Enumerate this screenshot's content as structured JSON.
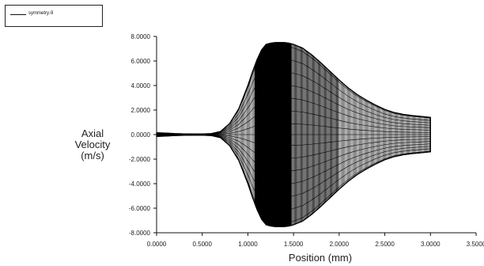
{
  "legend": {
    "label": "symmetry-9"
  },
  "chart_data": {
    "type": "line",
    "title": "",
    "xlabel": "Position (mm)",
    "ylabel_lines": [
      "Axial",
      "Velocity",
      "(m/s)"
    ],
    "xlim": [
      0.0,
      3.5
    ],
    "ylim": [
      -8.0,
      8.0
    ],
    "x_ticks": [
      0.0,
      0.5,
      1.0,
      1.5,
      2.0,
      2.5,
      3.0,
      3.5
    ],
    "x_tick_labels": [
      "0.0000",
      "0.5000",
      "1.0000",
      "1.5000",
      "2.0000",
      "2.5000",
      "3.0000",
      "3.5000"
    ],
    "y_ticks": [
      8.0,
      6.0,
      4.0,
      2.0,
      0.0,
      -2.0,
      -4.0,
      -6.0,
      -8.0
    ],
    "y_tick_labels": [
      "8.0000",
      "6.0000",
      "4.0000",
      "2.0000",
      "0.0000",
      "-2.0000",
      "-4.0000",
      "-6.0000",
      "-8.0000"
    ],
    "grid": false,
    "legend_placement": "top-left",
    "series": [
      {
        "name": "symmetry-9",
        "x": [
          0.0,
          0.1,
          0.2,
          0.3,
          0.4,
          0.5,
          0.6,
          0.7,
          0.8,
          0.9,
          1.0,
          1.05,
          1.1,
          1.15,
          1.2,
          1.25,
          1.3,
          1.35,
          1.4,
          1.45,
          1.5,
          1.6,
          1.7,
          1.8,
          1.9,
          2.0,
          2.1,
          2.2,
          2.3,
          2.4,
          2.5,
          2.6,
          2.7,
          2.8,
          2.9,
          3.0
        ],
        "upper": [
          0.15,
          0.12,
          0.08,
          0.06,
          0.05,
          0.05,
          0.08,
          0.25,
          0.9,
          2.1,
          4.0,
          5.1,
          6.1,
          6.9,
          7.35,
          7.45,
          7.5,
          7.5,
          7.5,
          7.45,
          7.35,
          7.05,
          6.5,
          5.85,
          5.15,
          4.45,
          3.8,
          3.25,
          2.8,
          2.4,
          2.05,
          1.8,
          1.65,
          1.55,
          1.48,
          1.4
        ],
        "lower": [
          -0.15,
          -0.12,
          -0.08,
          -0.06,
          -0.05,
          -0.05,
          -0.08,
          -0.25,
          -0.9,
          -2.1,
          -4.0,
          -5.1,
          -6.1,
          -6.9,
          -7.35,
          -7.45,
          -7.5,
          -7.5,
          -7.5,
          -7.45,
          -7.35,
          -7.05,
          -6.5,
          -5.85,
          -5.15,
          -4.45,
          -3.8,
          -3.25,
          -2.8,
          -2.4,
          -2.05,
          -1.8,
          -1.65,
          -1.55,
          -1.48,
          -1.4
        ]
      }
    ]
  }
}
